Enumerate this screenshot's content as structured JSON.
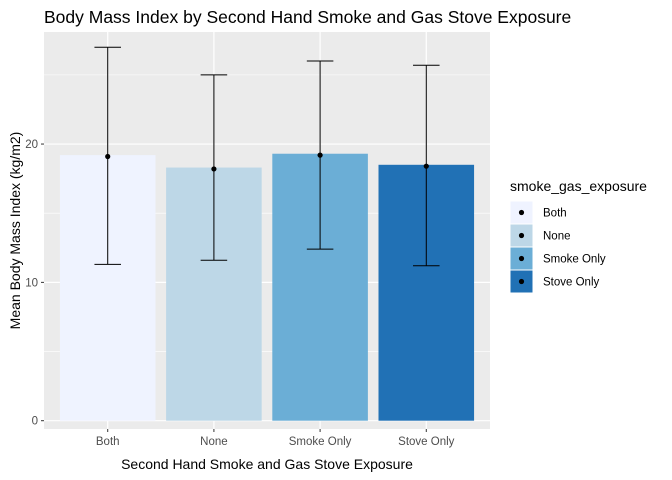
{
  "chart_data": {
    "type": "bar",
    "title": "Body Mass Index by Second Hand Smoke and Gas Stove Exposure",
    "xlabel": "Second Hand Smoke and Gas Stove Exposure",
    "ylabel": "Mean Body Mass Index (kg/m2)",
    "categories": [
      "Both",
      "None",
      "Smoke Only",
      "Stove Only"
    ],
    "values": [
      19.2,
      18.3,
      19.3,
      18.5
    ],
    "error_bars": {
      "center": [
        19.1,
        18.2,
        19.2,
        18.4
      ],
      "lower": [
        11.3,
        11.6,
        12.4,
        11.2
      ],
      "upper": [
        27.0,
        25.0,
        26.0,
        25.7
      ]
    },
    "colors": [
      "#EFF3FF",
      "#BDD7E7",
      "#6BAED6",
      "#2171B5"
    ],
    "ylim": [
      -0.6,
      28.1
    ],
    "yticks": [
      0,
      10,
      20
    ],
    "grid": true,
    "legend": {
      "title": "smoke_gas_exposure",
      "position": "right",
      "entries": [
        "Both",
        "None",
        "Smoke Only",
        "Stove Only"
      ]
    }
  }
}
